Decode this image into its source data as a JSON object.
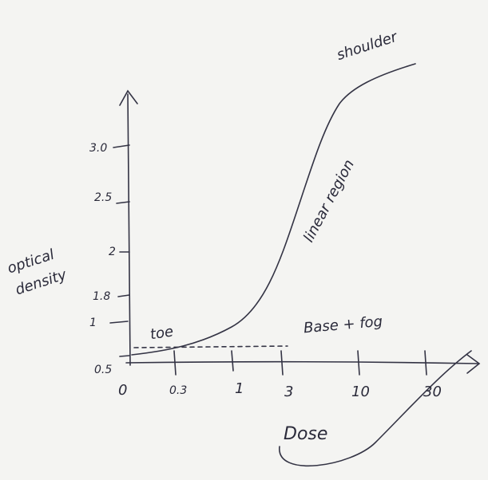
{
  "labels": {
    "shoulder": "shoulder",
    "linear": "linear region",
    "toe": "toe",
    "base": "Base + fog"
  },
  "y_axis": {
    "title": [
      "optical",
      "density"
    ],
    "ticks": [
      "3.0",
      "2.5",
      "2",
      "1.8",
      "1",
      "0.5"
    ]
  },
  "x_axis": {
    "title": "Dose",
    "ticks": [
      "0",
      "0.3",
      "1",
      "3",
      "10",
      "30"
    ]
  }
}
